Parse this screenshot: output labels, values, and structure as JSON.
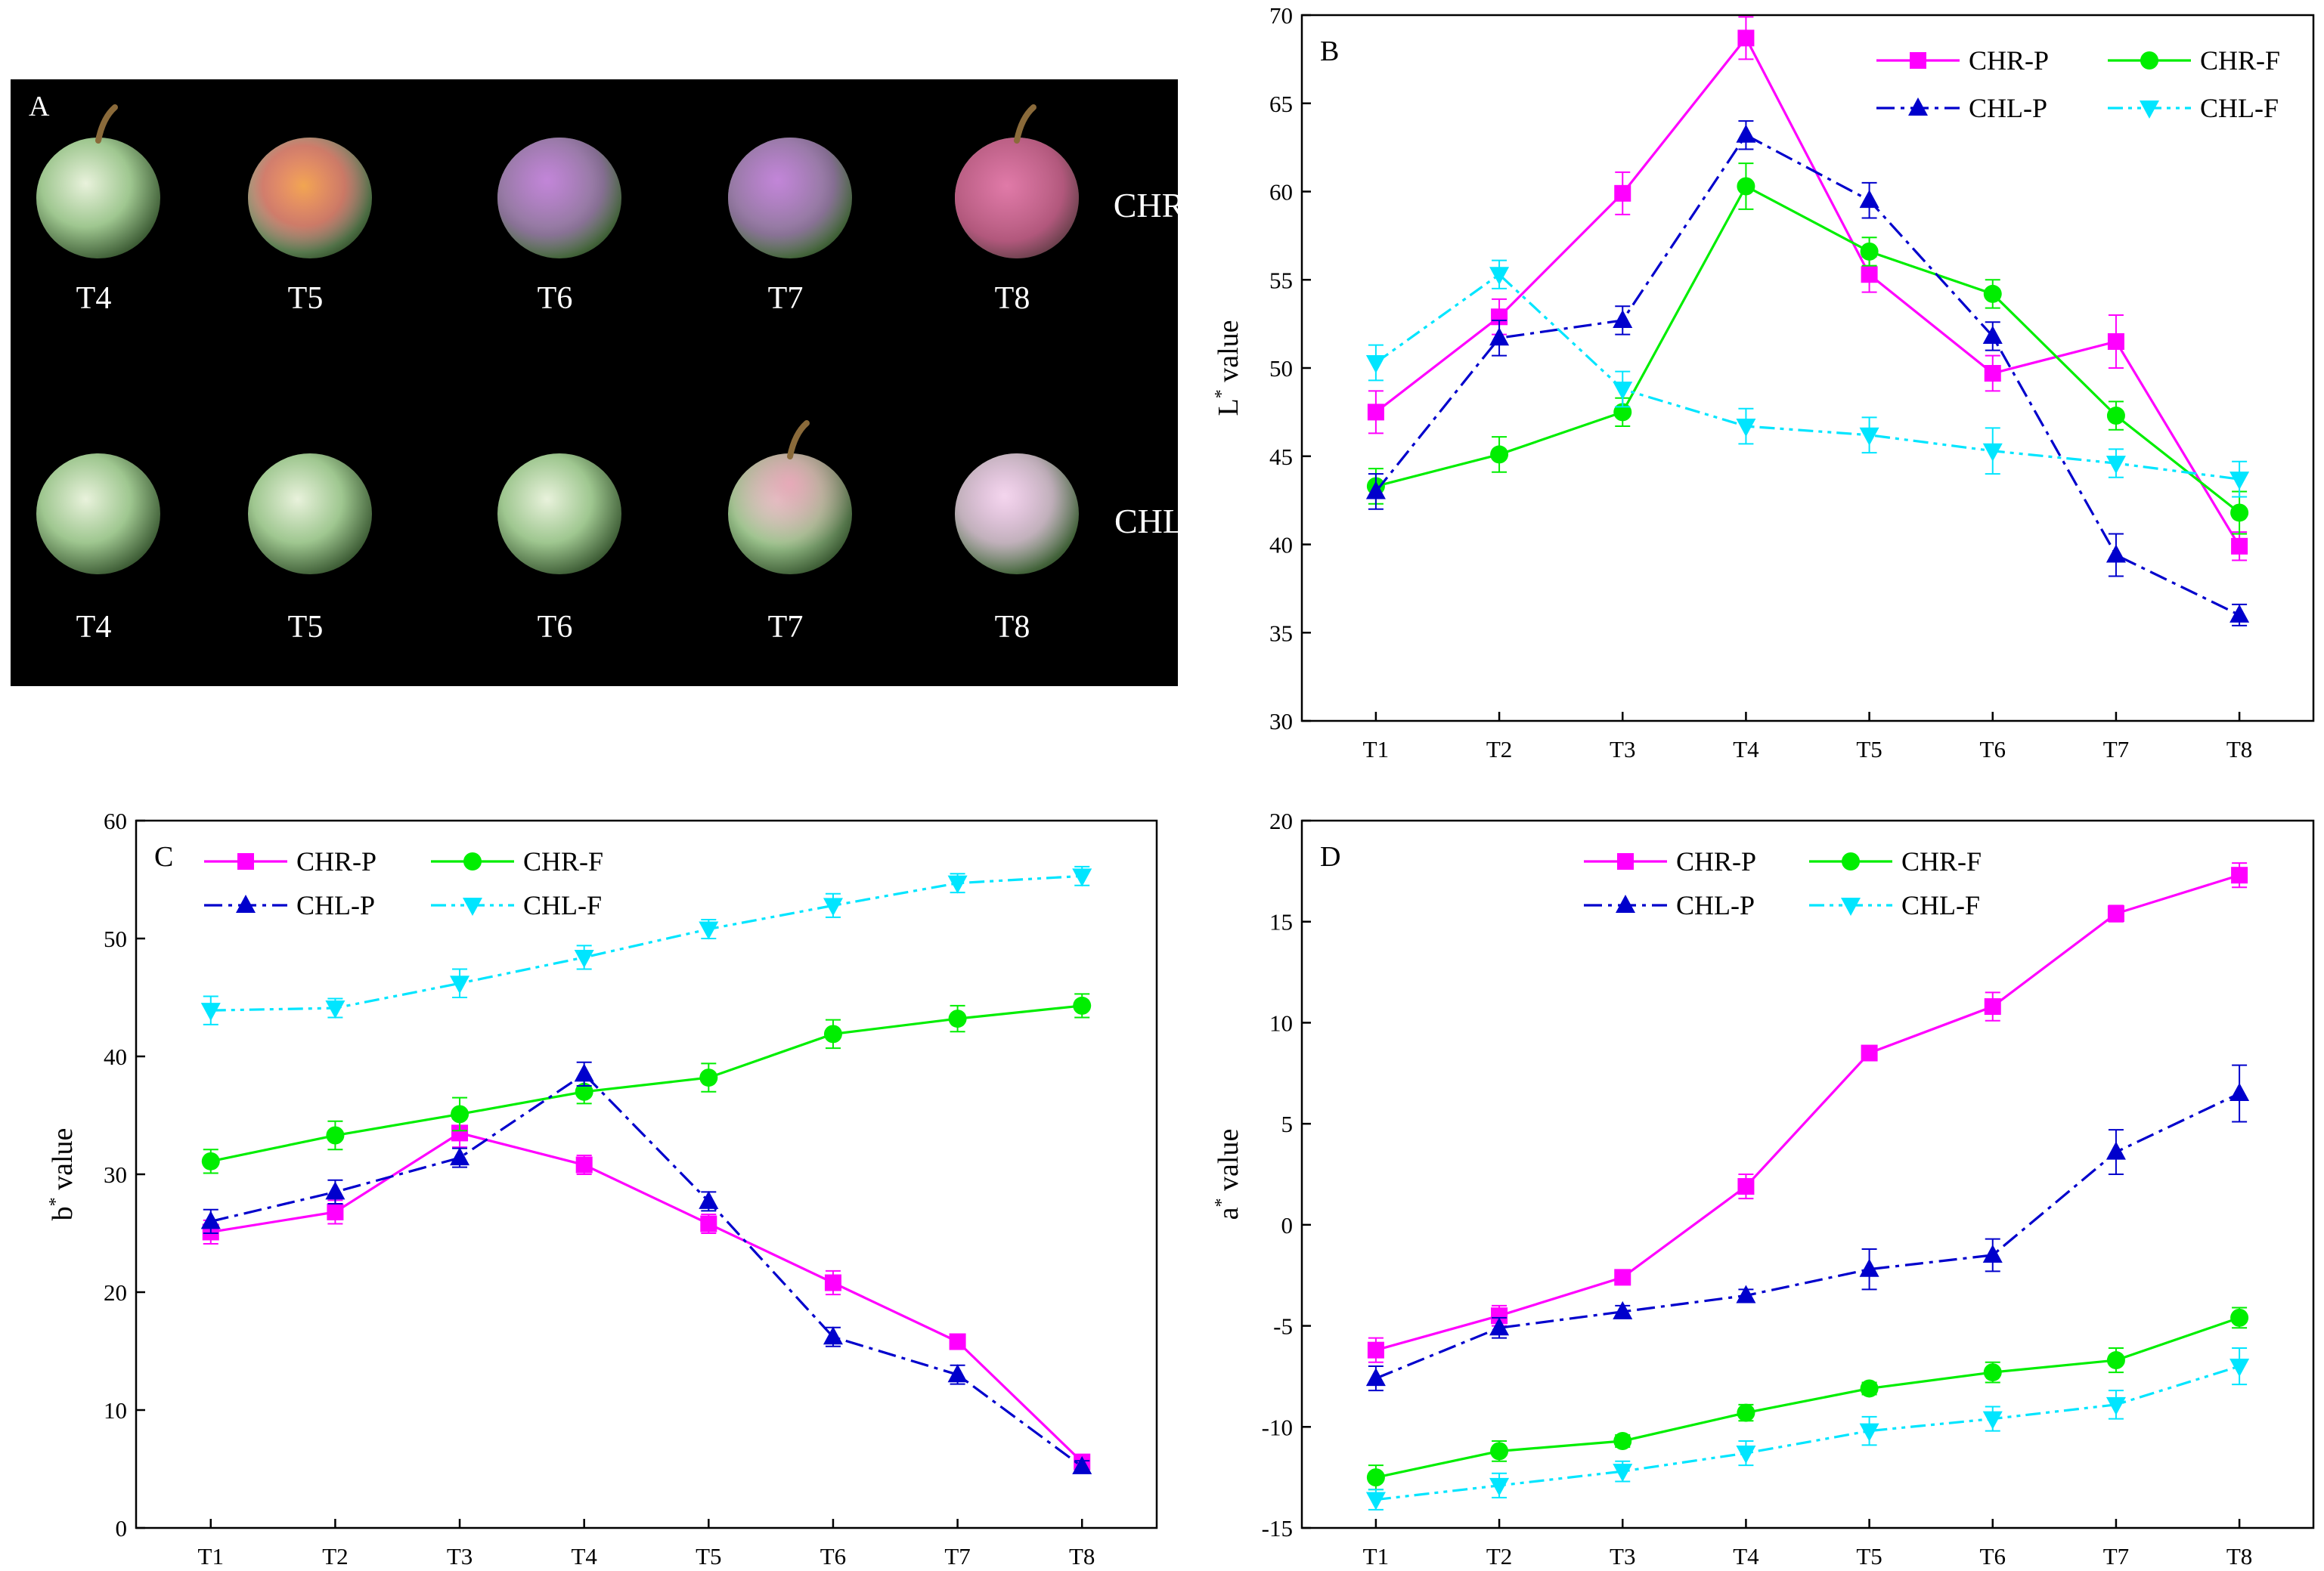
{
  "panel_a": {
    "label": "A",
    "rows": [
      {
        "cultivar": "CHR",
        "stages": [
          "T4",
          "T5",
          "T6",
          "T7",
          "T8"
        ]
      },
      {
        "cultivar": "CHL",
        "stages": [
          "T4",
          "T5",
          "T6",
          "T7",
          "T8"
        ]
      }
    ]
  },
  "colors": {
    "CHR-P": "#ff00ff",
    "CHR-F": "#00ee00",
    "CHL-P": "#0000cc",
    "CHL-F": "#00e5ff"
  },
  "chart_data": [
    {
      "panel": "B",
      "type": "line",
      "title": "",
      "xlabel": "",
      "ylabel_main": "L",
      "ylabel_sup": "*",
      "ylabel_rest": " value",
      "categories": [
        "T1",
        "T2",
        "T3",
        "T4",
        "T5",
        "T6",
        "T7",
        "T8"
      ],
      "ylim": [
        30,
        70
      ],
      "yticks": [
        30,
        35,
        40,
        45,
        50,
        55,
        60,
        65,
        70
      ],
      "legend_position": "top-right",
      "series": [
        {
          "name": "CHR-P",
          "marker": "square",
          "dash": "solid",
          "values": [
            47.5,
            52.9,
            59.9,
            68.7,
            55.3,
            49.7,
            51.5,
            39.9
          ],
          "errors": [
            1.2,
            1.0,
            1.2,
            1.2,
            1.0,
            1.0,
            1.5,
            0.8
          ]
        },
        {
          "name": "CHR-F",
          "marker": "circle",
          "dash": "solid",
          "values": [
            43.3,
            45.1,
            47.5,
            60.3,
            56.6,
            54.2,
            47.3,
            41.8
          ],
          "errors": [
            1.0,
            1.0,
            0.8,
            1.3,
            0.8,
            0.8,
            0.8,
            1.2
          ]
        },
        {
          "name": "CHL-P",
          "marker": "triangle-up",
          "dash": "dashdot",
          "values": [
            43.0,
            51.7,
            52.7,
            63.2,
            59.5,
            51.8,
            39.4,
            36.0
          ],
          "errors": [
            1.0,
            1.0,
            0.8,
            0.8,
            1.0,
            0.8,
            1.2,
            0.6
          ]
        },
        {
          "name": "CHL-F",
          "marker": "triangle-down",
          "dash": "dashdotdot",
          "values": [
            50.3,
            55.3,
            48.8,
            46.7,
            46.2,
            45.3,
            44.6,
            43.7
          ],
          "errors": [
            1.0,
            0.8,
            1.0,
            1.0,
            1.0,
            1.3,
            0.8,
            1.0
          ]
        }
      ]
    },
    {
      "panel": "C",
      "type": "line",
      "title": "",
      "xlabel": "",
      "ylabel_main": "b",
      "ylabel_sup": "*",
      "ylabel_rest": " value",
      "categories": [
        "T1",
        "T2",
        "T3",
        "T4",
        "T5",
        "T6",
        "T7",
        "T8"
      ],
      "ylim": [
        0,
        60
      ],
      "yticks": [
        0,
        10,
        20,
        30,
        40,
        50,
        60
      ],
      "legend_position": "top-left",
      "series": [
        {
          "name": "CHR-P",
          "marker": "square",
          "dash": "solid",
          "values": [
            25.1,
            26.8,
            33.5,
            30.8,
            25.8,
            20.8,
            15.8,
            5.6
          ],
          "errors": [
            1.0,
            1.0,
            1.2,
            0.8,
            0.8,
            1.0,
            0.6,
            0.5
          ]
        },
        {
          "name": "CHR-F",
          "marker": "circle",
          "dash": "solid",
          "values": [
            31.1,
            33.3,
            35.1,
            37.0,
            38.2,
            41.9,
            43.2,
            44.3
          ],
          "errors": [
            1.0,
            1.2,
            1.4,
            1.0,
            1.2,
            1.2,
            1.1,
            1.0
          ]
        },
        {
          "name": "CHL-P",
          "marker": "triangle-up",
          "dash": "dashdot",
          "values": [
            26.0,
            28.5,
            31.4,
            38.5,
            27.7,
            16.2,
            13.0,
            5.2
          ],
          "errors": [
            1.0,
            1.0,
            0.8,
            1.0,
            0.8,
            0.8,
            0.8,
            0.5
          ]
        },
        {
          "name": "CHL-F",
          "marker": "triangle-down",
          "dash": "dashdotdot",
          "values": [
            43.9,
            44.1,
            46.2,
            48.4,
            50.8,
            52.8,
            54.7,
            55.3
          ],
          "errors": [
            1.2,
            0.8,
            1.2,
            1.0,
            0.8,
            1.0,
            0.8,
            0.8
          ]
        }
      ]
    },
    {
      "panel": "D",
      "type": "line",
      "title": "",
      "xlabel": "",
      "ylabel_main": "a",
      "ylabel_sup": "*",
      "ylabel_rest": " value",
      "categories": [
        "T1",
        "T2",
        "T3",
        "T4",
        "T5",
        "T6",
        "T7",
        "T8"
      ],
      "ylim": [
        -15,
        20
      ],
      "yticks": [
        -15,
        -10,
        -5,
        0,
        5,
        10,
        15,
        20
      ],
      "legend_position": "top-center",
      "series": [
        {
          "name": "CHR-P",
          "marker": "square",
          "dash": "solid",
          "values": [
            -6.2,
            -4.5,
            -2.6,
            1.9,
            8.5,
            10.8,
            15.4,
            17.3
          ],
          "errors": [
            0.6,
            0.5,
            0.3,
            0.6,
            0.3,
            0.7,
            0.4,
            0.6
          ]
        },
        {
          "name": "CHR-F",
          "marker": "circle",
          "dash": "solid",
          "values": [
            -12.5,
            -11.2,
            -10.7,
            -9.3,
            -8.1,
            -7.3,
            -6.7,
            -4.6
          ],
          "errors": [
            0.6,
            0.5,
            0.3,
            0.4,
            0.3,
            0.5,
            0.6,
            0.5
          ]
        },
        {
          "name": "CHL-P",
          "marker": "triangle-up",
          "dash": "dashdot",
          "values": [
            -7.6,
            -5.1,
            -4.3,
            -3.5,
            -2.2,
            -1.5,
            3.6,
            6.5
          ],
          "errors": [
            0.6,
            0.5,
            0.3,
            0.3,
            1.0,
            0.8,
            1.1,
            1.4
          ]
        },
        {
          "name": "CHL-F",
          "marker": "triangle-down",
          "dash": "dashdotdot",
          "values": [
            -13.6,
            -12.9,
            -12.2,
            -11.3,
            -10.2,
            -9.6,
            -8.9,
            -7.0
          ],
          "errors": [
            0.5,
            0.6,
            0.5,
            0.6,
            0.7,
            0.6,
            0.7,
            0.9
          ]
        }
      ]
    }
  ]
}
